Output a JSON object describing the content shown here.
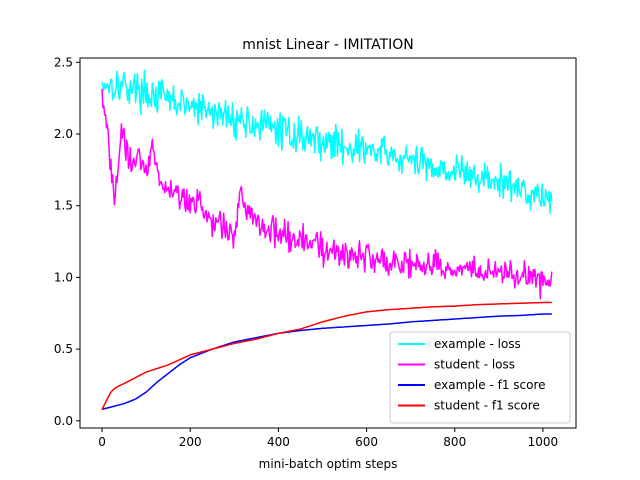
{
  "chart_data": {
    "type": "line",
    "title": "mnist Linear - IMITATION",
    "xlabel": "mini-batch optim steps",
    "ylabel": "",
    "xlim": [
      -50,
      1075
    ],
    "ylim": [
      -0.05,
      2.53
    ],
    "x_ticks": [
      0,
      200,
      400,
      600,
      800,
      1000
    ],
    "y_ticks": [
      0.0,
      0.5,
      1.0,
      1.5,
      2.0,
      2.5
    ],
    "x_tick_labels": [
      "0",
      "200",
      "400",
      "600",
      "800",
      "1000"
    ],
    "y_tick_labels": [
      "0.0",
      "0.5",
      "1.0",
      "1.5",
      "2.0",
      "2.5"
    ],
    "grid": false,
    "legend_position": "lower-right",
    "series": [
      {
        "name": "example - loss",
        "color": "#00ffff",
        "noise": 0.06,
        "x": [
          0,
          50,
          100,
          150,
          200,
          250,
          300,
          350,
          400,
          450,
          500,
          550,
          600,
          650,
          700,
          750,
          800,
          850,
          900,
          950,
          1000,
          1020
        ],
        "y": [
          2.36,
          2.34,
          2.29,
          2.24,
          2.19,
          2.15,
          2.11,
          2.07,
          2.03,
          1.99,
          1.95,
          1.92,
          1.89,
          1.85,
          1.81,
          1.78,
          1.74,
          1.7,
          1.66,
          1.62,
          1.57,
          1.52
        ]
      },
      {
        "name": "student - loss",
        "color": "#ff00ff",
        "noise": 0.05,
        "x": [
          0,
          10,
          20,
          28,
          35,
          45,
          55,
          65,
          80,
          100,
          115,
          130,
          150,
          200,
          250,
          280,
          300,
          315,
          330,
          350,
          400,
          450,
          500,
          550,
          600,
          650,
          700,
          750,
          800,
          850,
          900,
          950,
          1000,
          1020
        ],
        "y": [
          2.35,
          2.05,
          1.75,
          1.55,
          1.75,
          2.02,
          1.88,
          1.78,
          1.85,
          1.75,
          1.95,
          1.68,
          1.62,
          1.52,
          1.42,
          1.32,
          1.32,
          1.55,
          1.48,
          1.4,
          1.32,
          1.25,
          1.2,
          1.16,
          1.14,
          1.12,
          1.1,
          1.08,
          1.06,
          1.05,
          1.03,
          1.01,
          0.98,
          0.96
        ]
      },
      {
        "name": "example - f1 score",
        "color": "#0000ff",
        "noise": 0,
        "x": [
          0,
          25,
          50,
          75,
          100,
          125,
          150,
          175,
          200,
          250,
          300,
          350,
          400,
          450,
          500,
          550,
          600,
          650,
          700,
          750,
          800,
          850,
          900,
          950,
          1000,
          1020
        ],
        "y": [
          0.08,
          0.1,
          0.12,
          0.15,
          0.2,
          0.27,
          0.33,
          0.39,
          0.44,
          0.5,
          0.55,
          0.58,
          0.61,
          0.63,
          0.645,
          0.655,
          0.665,
          0.675,
          0.69,
          0.7,
          0.71,
          0.72,
          0.73,
          0.735,
          0.745,
          0.745
        ]
      },
      {
        "name": "student - f1 score",
        "color": "#ff0000",
        "noise": 0,
        "x": [
          0,
          10,
          20,
          30,
          50,
          75,
          100,
          150,
          200,
          250,
          300,
          350,
          400,
          450,
          500,
          550,
          600,
          650,
          700,
          750,
          800,
          850,
          900,
          950,
          1000,
          1020
        ],
        "y": [
          0.08,
          0.14,
          0.2,
          0.23,
          0.26,
          0.3,
          0.34,
          0.39,
          0.46,
          0.5,
          0.54,
          0.57,
          0.61,
          0.64,
          0.69,
          0.73,
          0.76,
          0.775,
          0.785,
          0.795,
          0.8,
          0.81,
          0.815,
          0.82,
          0.825,
          0.825
        ]
      }
    ]
  }
}
